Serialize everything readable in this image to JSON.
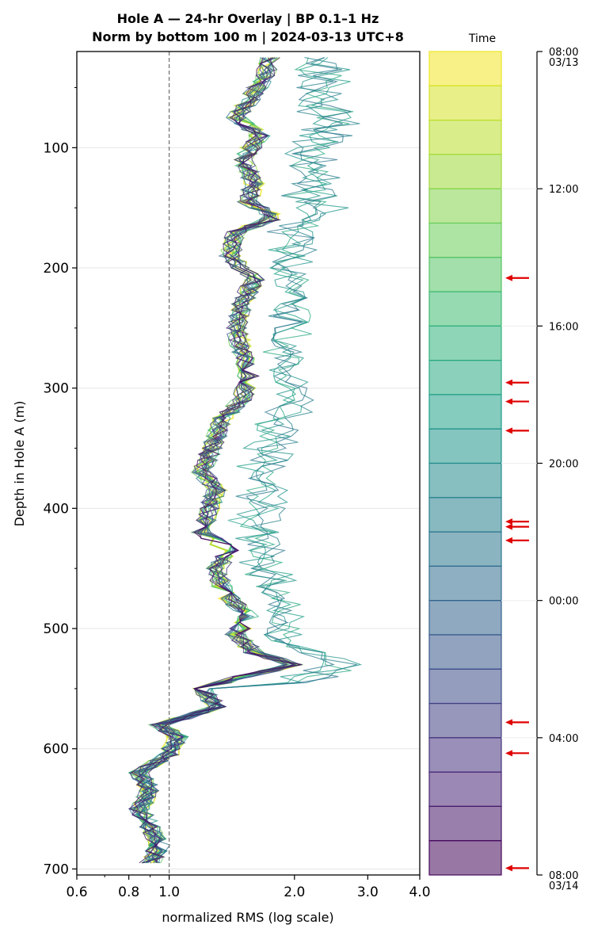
{
  "chart_data": {
    "type": "line",
    "title": "Hole A — 24-hr Overlay  |  BP 0.1–1 Hz",
    "subtitle": "Norm by bottom 100 m  |  2024-03-13 UTC+8",
    "xlabel": "normalized RMS  (log scale)",
    "ylabel": "Depth in Hole A (m)",
    "x_scale": "log",
    "xlim": [
      0.6,
      4.0
    ],
    "ylim": [
      705,
      20
    ],
    "x_ticks": [
      "0.6",
      "0.8",
      "1.0",
      "2.0",
      "3.0",
      "4.0"
    ],
    "y_ticks": [
      "100",
      "200",
      "300",
      "400",
      "500",
      "600",
      "700"
    ],
    "reference_line_x": 1.0,
    "grid": "horizontal",
    "colorbar": {
      "label": "Time",
      "colormap": "viridis",
      "ticks": [
        {
          "label": "08:00",
          "sub": "03/13",
          "hours": 0
        },
        {
          "label": "12:00",
          "sub": "",
          "hours": 4
        },
        {
          "label": "16:00",
          "sub": "",
          "hours": 8
        },
        {
          "label": "20:00",
          "sub": "",
          "hours": 12
        },
        {
          "label": "00:00",
          "sub": "",
          "hours": 16
        },
        {
          "label": "04:00",
          "sub": "",
          "hours": 20
        },
        {
          "label": "08:00",
          "sub": "03/14",
          "hours": 24
        }
      ],
      "marked_hours": [
        6.6,
        9.65,
        10.2,
        11.05,
        13.7,
        13.85,
        14.25,
        19.55,
        20.45,
        23.8
      ]
    },
    "series_count": 24,
    "series_time_range_hours": [
      0,
      24
    ],
    "representative_profile": {
      "depth": [
        25,
        40,
        55,
        75,
        90,
        110,
        130,
        145,
        158,
        170,
        190,
        210,
        230,
        250,
        270,
        290,
        310,
        325,
        340,
        355,
        370,
        385,
        400,
        420,
        435,
        450,
        470,
        490,
        505,
        520,
        530,
        540,
        550,
        565,
        580,
        590,
        605,
        620,
        635,
        650,
        665,
        680,
        695
      ],
      "rms": [
        1.75,
        1.7,
        1.6,
        1.45,
        1.65,
        1.5,
        1.6,
        1.55,
        1.8,
        1.45,
        1.4,
        1.6,
        1.5,
        1.45,
        1.5,
        1.55,
        1.5,
        1.35,
        1.3,
        1.25,
        1.2,
        1.3,
        1.25,
        1.2,
        1.4,
        1.3,
        1.35,
        1.55,
        1.45,
        1.6,
        2.0,
        1.5,
        1.2,
        1.3,
        0.95,
        1.05,
        1.0,
        0.85,
        0.9,
        0.85,
        0.9,
        0.95,
        0.9
      ]
    },
    "envelope_max": {
      "depth": [
        25,
        40,
        60,
        80,
        100,
        120,
        140,
        155,
        170,
        200,
        230,
        260,
        290,
        310,
        330,
        360,
        390,
        420,
        450,
        480,
        510,
        530,
        545
      ],
      "rms": [
        2.55,
        2.8,
        2.75,
        2.95,
        2.6,
        2.55,
        2.6,
        2.75,
        2.3,
        2.2,
        2.1,
        2.15,
        2.05,
        2.3,
        2.05,
        2.0,
        1.9,
        1.85,
        1.95,
        2.05,
        2.05,
        2.95,
        2.4
      ]
    }
  }
}
